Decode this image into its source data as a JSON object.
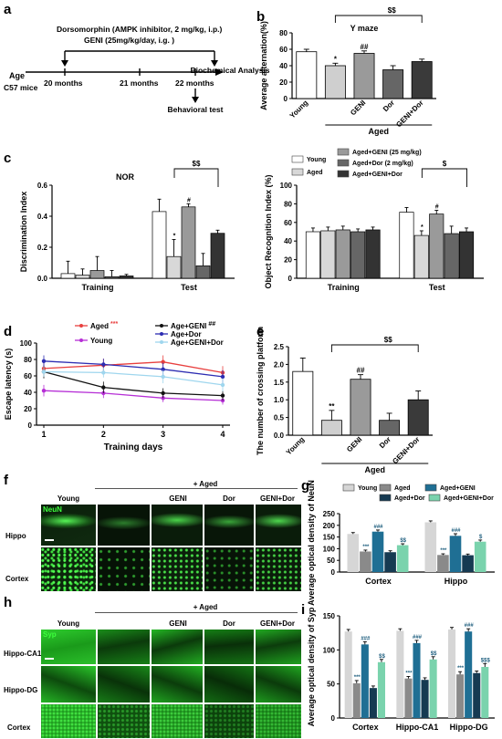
{
  "panels": {
    "a": {
      "letter": "a",
      "treatment1": "Dorsomorphin (AMPK inhibitor, 2 mg/kg, i.p.)",
      "treatment2": "GENI (25mg/kg/day, i.g. )",
      "age_label": "Age",
      "strain": "C57 mice",
      "t1": "20 months",
      "t2": "21 months",
      "t3": "22 months",
      "end": "Biochemical Analysis",
      "behavior": "Behavioral test"
    },
    "b": {
      "letter": "b"
    },
    "c": {
      "letter": "c"
    },
    "d": {
      "letter": "d"
    },
    "e": {
      "letter": "e"
    },
    "f": {
      "letter": "f",
      "group_header": "+ Aged",
      "cols": [
        "Young",
        "",
        "GENI",
        "Dor",
        "GENI+Dor"
      ],
      "rows": [
        "Hippo",
        "Cortex"
      ],
      "stain": "NeuN"
    },
    "g": {
      "letter": "g"
    },
    "h": {
      "letter": "h",
      "group_header": "+ Aged",
      "cols": [
        "Young",
        "",
        "GENI",
        "Dor",
        "GENI+Dor"
      ],
      "rows": [
        "Hippo-CA1",
        "Hippo-DG",
        "Cortex"
      ],
      "stain": "Syp"
    },
    "i": {
      "letter": "i"
    }
  },
  "chart_data": [
    {
      "id": "b",
      "type": "bar",
      "title": "Y maze",
      "ylabel": "Average alternation(%)",
      "ylim": [
        0,
        80
      ],
      "yticks": [
        0,
        20,
        40,
        60,
        80
      ],
      "categories": [
        "Young",
        "",
        "GENI",
        "Dor",
        "GENI+Dor"
      ],
      "values": [
        57,
        40,
        55,
        35,
        45
      ],
      "errors": [
        3,
        3,
        3,
        5,
        3
      ],
      "colors": [
        "#ffffff",
        "#cfcfcf",
        "#9a9a9a",
        "#666666",
        "#3a3a3a"
      ],
      "marks": [
        "",
        "*",
        "##",
        "",
        ""
      ],
      "group_label": "Aged",
      "bracket_label": "$$"
    },
    {
      "id": "c1",
      "type": "bar",
      "title": "NOR",
      "ylabel": "Discrimination Index",
      "ylim": [
        0,
        0.6
      ],
      "yticks": [
        0.0,
        0.2,
        0.4,
        0.6
      ],
      "categories": [
        "Training",
        "Test"
      ],
      "series": [
        {
          "values": [
            0.03,
            0.43
          ],
          "errors": [
            0.08,
            0.08
          ],
          "color": "#ffffff"
        },
        {
          "values": [
            0.02,
            0.14
          ],
          "errors": [
            0.04,
            0.11
          ],
          "color": "#d8d8d8"
        },
        {
          "values": [
            0.05,
            0.46
          ],
          "errors": [
            0.09,
            0.02
          ],
          "color": "#9a9a9a"
        },
        {
          "values": [
            0.01,
            0.08
          ],
          "errors": [
            0.04,
            0.08
          ],
          "color": "#666666"
        },
        {
          "values": [
            0.015,
            0.29
          ],
          "errors": [
            0.01,
            0.02
          ],
          "color": "#333333"
        }
      ],
      "marks": {
        "1": "*",
        "2": "#"
      },
      "bracket_label": "$$"
    },
    {
      "id": "c2",
      "type": "bar",
      "ylabel": "Object Recognition Index (%)",
      "ylim": [
        0,
        100
      ],
      "yticks": [
        0,
        20,
        40,
        60,
        80,
        100
      ],
      "categories": [
        "Training",
        "Test"
      ],
      "series": [
        {
          "name": "Young",
          "values": [
            50,
            71
          ],
          "errors": [
            4,
            5
          ],
          "color": "#ffffff"
        },
        {
          "name": "Aged",
          "values": [
            51,
            46
          ],
          "errors": [
            4,
            5
          ],
          "color": "#d8d8d8"
        },
        {
          "name": "Aged+GENI (25 mg/kg)",
          "values": [
            52,
            69
          ],
          "errors": [
            4,
            4
          ],
          "color": "#9a9a9a"
        },
        {
          "name": "Aged+Dor (2 mg/kg)",
          "values": [
            50,
            48
          ],
          "errors": [
            3,
            8
          ],
          "color": "#666666"
        },
        {
          "name": "Aged+GENI+Dor",
          "values": [
            52,
            50
          ],
          "errors": [
            3,
            4
          ],
          "color": "#333333"
        }
      ],
      "marks": {
        "1": "*",
        "2": "#"
      },
      "bracket_label": "$"
    },
    {
      "id": "d",
      "type": "line",
      "xlabel": "Training days",
      "ylabel": "Escape latency (s)",
      "x": [
        1,
        2,
        3,
        4
      ],
      "ylim": [
        0,
        100
      ],
      "yticks": [
        0,
        20,
        40,
        60,
        80,
        100
      ],
      "series": [
        {
          "name": "Aged",
          "mark": "***",
          "values": [
            69,
            73,
            77,
            64
          ],
          "errors": [
            8,
            8,
            8,
            8
          ],
          "color": "#e8403f"
        },
        {
          "name": "Young",
          "values": [
            42,
            39,
            33,
            30
          ],
          "errors": [
            7,
            6,
            5,
            5
          ],
          "color": "#b62fd6"
        },
        {
          "name": "Age+GENI",
          "mark": "##",
          "values": [
            65,
            46,
            39,
            36
          ],
          "errors": [
            8,
            7,
            6,
            6
          ],
          "color": "#111111"
        },
        {
          "name": "Age+Dor",
          "values": [
            78,
            74,
            68,
            59
          ],
          "errors": [
            7,
            7,
            8,
            8
          ],
          "color": "#2d2db2"
        },
        {
          "name": "Age+GENI+Dor",
          "values": [
            65,
            64,
            59,
            49
          ],
          "errors": [
            6,
            6,
            8,
            8
          ],
          "color": "#9fd6ee"
        }
      ]
    },
    {
      "id": "e",
      "type": "bar",
      "ylabel": "The number of crossing platform",
      "ylim": [
        0,
        2.5
      ],
      "yticks": [
        0.0,
        0.5,
        1.0,
        1.5,
        2.0,
        2.5
      ],
      "categories": [
        "Young",
        "",
        "GENI",
        "Dor",
        "GENI+Dor"
      ],
      "values": [
        1.8,
        0.42,
        1.58,
        0.42,
        1.0
      ],
      "errors": [
        0.38,
        0.28,
        0.13,
        0.2,
        0.25
      ],
      "colors": [
        "#ffffff",
        "#cfcfcf",
        "#9a9a9a",
        "#666666",
        "#3a3a3a"
      ],
      "marks": [
        "",
        "**",
        "##",
        "",
        ""
      ],
      "group_label": "Aged",
      "bracket_label": "$$"
    },
    {
      "id": "g",
      "type": "bar",
      "ylabel": "Average optical density of NeuN",
      "ylim": [
        0,
        250
      ],
      "yticks": [
        0,
        50,
        100,
        150,
        200,
        250
      ],
      "categories": [
        "Cortex",
        "Hippo"
      ],
      "series": [
        {
          "name": "Young",
          "values": [
            163,
            213
          ],
          "errors": [
            6,
            6
          ],
          "color": "#d6d6d6"
        },
        {
          "name": "Aged",
          "values": [
            88,
            73
          ],
          "errors": [
            6,
            5
          ],
          "color": "#8a8a8a"
        },
        {
          "name": "Aged+GENI",
          "values": [
            173,
            155
          ],
          "errors": [
            7,
            9
          ],
          "color": "#1f6f94"
        },
        {
          "name": "Aged+Dor",
          "values": [
            85,
            72
          ],
          "errors": [
            6,
            5
          ],
          "color": "#163a52"
        },
        {
          "name": "Aged+GENI+Dor",
          "values": [
            115,
            130
          ],
          "errors": [
            6,
            7
          ],
          "color": "#7ad3ad"
        }
      ],
      "marks": {
        "1": "***",
        "2": "###",
        "4": [
          "$$",
          "$"
        ]
      }
    },
    {
      "id": "i",
      "type": "bar",
      "ylabel": "Average optical density of Syp",
      "ylim": [
        0,
        150
      ],
      "yticks": [
        0,
        50,
        100,
        150
      ],
      "categories": [
        "Cortex",
        "Hippo-CA1",
        "Hippo-DG"
      ],
      "series": [
        {
          "values": [
            127,
            128,
            130
          ],
          "errors": [
            3,
            3,
            3
          ],
          "color": "#d6d6d6"
        },
        {
          "values": [
            51,
            58,
            64
          ],
          "errors": [
            4,
            3,
            4
          ],
          "color": "#8a8a8a"
        },
        {
          "values": [
            108,
            110,
            127
          ],
          "errors": [
            4,
            4,
            4
          ],
          "color": "#1f6f94"
        },
        {
          "values": [
            44,
            56,
            66
          ],
          "errors": [
            3,
            3,
            3
          ],
          "color": "#163a52"
        },
        {
          "values": [
            82,
            86,
            75
          ],
          "errors": [
            4,
            4,
            5
          ],
          "color": "#7ad3ad"
        }
      ],
      "marks": {
        "1": "***",
        "2": "###",
        "4": [
          "$$",
          "$$",
          "$$$"
        ]
      }
    }
  ]
}
